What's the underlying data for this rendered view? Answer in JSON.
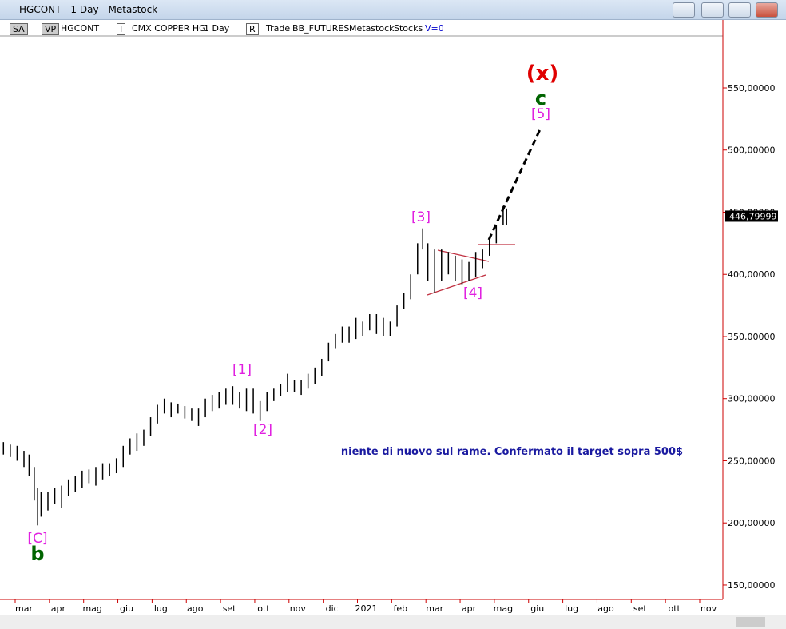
{
  "window_title": "HGCONT - 1 Day - Metastock",
  "toolbar": [
    "SA",
    "VP",
    "HGCONT",
    "I",
    "CMX COPPER HG",
    "1 Day",
    "R",
    "Trade",
    "BB_FUTURES",
    "Metastock",
    "Stocks",
    "V=0"
  ],
  "labels": [
    "(x)",
    "c",
    "[5]",
    "[3]",
    "[4]",
    "[1]",
    "[2]",
    "[C]",
    "b"
  ],
  "chart_data": {
    "type": "ohlc",
    "annotation": "niente di nuovo sul rame. Confermato il target sopra 500$",
    "color": "#000000",
    "xlim": [
      -0.7,
      20.42
    ],
    "xticks": [
      {
        "value": 0,
        "label": "mar"
      },
      {
        "value": 1,
        "label": "apr"
      },
      {
        "value": 2,
        "label": "mag"
      },
      {
        "value": 3,
        "label": "giu"
      },
      {
        "value": 4,
        "label": "lug"
      },
      {
        "value": 5,
        "label": "ago"
      },
      {
        "value": 6,
        "label": "set"
      },
      {
        "value": 7,
        "label": "ott"
      },
      {
        "value": 8,
        "label": "nov"
      },
      {
        "value": 9,
        "label": "dic"
      },
      {
        "value": 10,
        "label": "2021"
      },
      {
        "value": 11,
        "label": "feb"
      },
      {
        "value": 12,
        "label": "mar"
      },
      {
        "value": 13,
        "label": "apr"
      },
      {
        "value": 14,
        "label": "mag"
      },
      {
        "value": 15,
        "label": "giu"
      },
      {
        "value": 16,
        "label": "lug"
      },
      {
        "value": 17,
        "label": "ago"
      },
      {
        "value": 18,
        "label": "set"
      },
      {
        "value": 19,
        "label": "ott"
      },
      {
        "value": 20,
        "label": "nov"
      }
    ],
    "ylim": [
      138.4,
      591.8
    ],
    "yticks": [
      {
        "value": 150,
        "label": "150,00000"
      },
      {
        "value": 200,
        "label": "200,00000"
      },
      {
        "value": 250,
        "label": "250,00000"
      },
      {
        "value": 300,
        "label": "300,00000"
      },
      {
        "value": 350,
        "label": "350,00000"
      },
      {
        "value": 400,
        "label": "400,00000"
      },
      {
        "value": 450,
        "label": "450,00000"
      },
      {
        "value": 500,
        "label": "500,00000"
      },
      {
        "value": 550,
        "label": "550,00000"
      }
    ],
    "last_price": {
      "value": 446.8,
      "label": "446,79999"
    },
    "x": [
      -0.6,
      -0.4,
      -0.2,
      0,
      0.15,
      0.3,
      0.4,
      0.5,
      0.7,
      0.9,
      1.1,
      1.3,
      1.5,
      1.7,
      1.9,
      2.1,
      2.3,
      2.5,
      2.7,
      2.9,
      3.1,
      3.3,
      3.5,
      3.7,
      3.9,
      4.1,
      4.3,
      4.5,
      4.7,
      4.9,
      5.1,
      5.3,
      5.5,
      5.7,
      5.9,
      6.1,
      6.3,
      6.5,
      6.7,
      6.9,
      7.1,
      7.3,
      7.5,
      7.7,
      7.9,
      8.1,
      8.3,
      8.5,
      8.7,
      8.9,
      9.1,
      9.3,
      9.5,
      9.7,
      9.9,
      10.1,
      10.3,
      10.5,
      10.7,
      10.9,
      11.1,
      11.3,
      11.5,
      11.65,
      11.8,
      12.0,
      12.2,
      12.4,
      12.6,
      12.8,
      13.0,
      13.2,
      13.4,
      13.6,
      13.8,
      14.0,
      14.1
    ],
    "low": [
      255,
      253,
      250,
      245,
      238,
      218,
      198,
      205,
      210,
      215,
      212,
      222,
      225,
      228,
      232,
      230,
      235,
      238,
      240,
      245,
      255,
      258,
      262,
      270,
      280,
      288,
      285,
      288,
      284,
      282,
      278,
      285,
      290,
      292,
      295,
      295,
      292,
      290,
      288,
      282,
      290,
      298,
      302,
      305,
      305,
      303,
      308,
      312,
      318,
      330,
      340,
      345,
      345,
      348,
      350,
      355,
      352,
      350,
      350,
      358,
      372,
      380,
      400,
      420,
      395,
      385,
      395,
      400,
      395,
      392,
      395,
      398,
      405,
      415,
      425,
      440,
      440
    ],
    "high": [
      265,
      263,
      262,
      258,
      255,
      245,
      228,
      225,
      225,
      228,
      230,
      235,
      238,
      242,
      243,
      245,
      248,
      248,
      252,
      262,
      268,
      272,
      275,
      285,
      295,
      300,
      297,
      296,
      294,
      292,
      292,
      300,
      303,
      305,
      308,
      310,
      305,
      308,
      308,
      298,
      305,
      308,
      312,
      320,
      315,
      315,
      320,
      325,
      332,
      345,
      352,
      358,
      358,
      365,
      362,
      368,
      368,
      365,
      362,
      375,
      385,
      400,
      425,
      437,
      425,
      420,
      420,
      418,
      415,
      412,
      410,
      418,
      420,
      430,
      440,
      455,
      453
    ]
  }
}
